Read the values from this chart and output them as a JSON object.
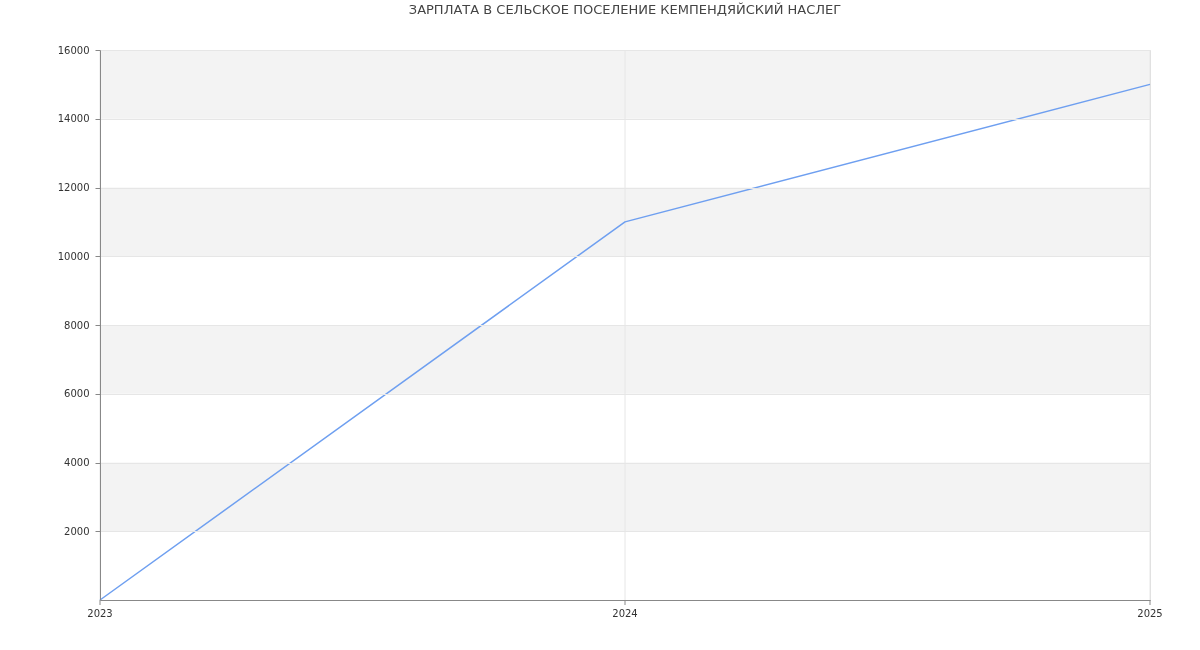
{
  "chart_data": {
    "type": "line",
    "title": "ЗАРПЛАТА В СЕЛЬСКОЕ ПОСЕЛЕНИЕ КЕМПЕНДЯЙСКИЙ НАСЛЕГ",
    "x": [
      2023,
      2024,
      2025
    ],
    "series": [
      {
        "color": "#6e9ff0",
        "values": [
          0,
          11000,
          15000
        ]
      }
    ],
    "xlim": [
      2023,
      2025
    ],
    "xticks": [
      2023,
      2024,
      2025
    ],
    "ylim": [
      0,
      16000
    ],
    "yticks": [
      2000,
      4000,
      6000,
      8000,
      10000,
      12000,
      14000,
      16000
    ],
    "bands": [
      {
        "axis": "y",
        "from": 2000,
        "to": 4000,
        "color": "#f3f3f3"
      },
      {
        "axis": "y",
        "from": 6000,
        "to": 8000,
        "color": "#f3f3f3"
      },
      {
        "axis": "y",
        "from": 10000,
        "to": 12000,
        "color": "#f3f3f3"
      },
      {
        "axis": "y",
        "from": 14000,
        "to": 16000,
        "color": "#f3f3f3"
      }
    ],
    "grid": true,
    "marker": "none",
    "line_style": "solid"
  }
}
